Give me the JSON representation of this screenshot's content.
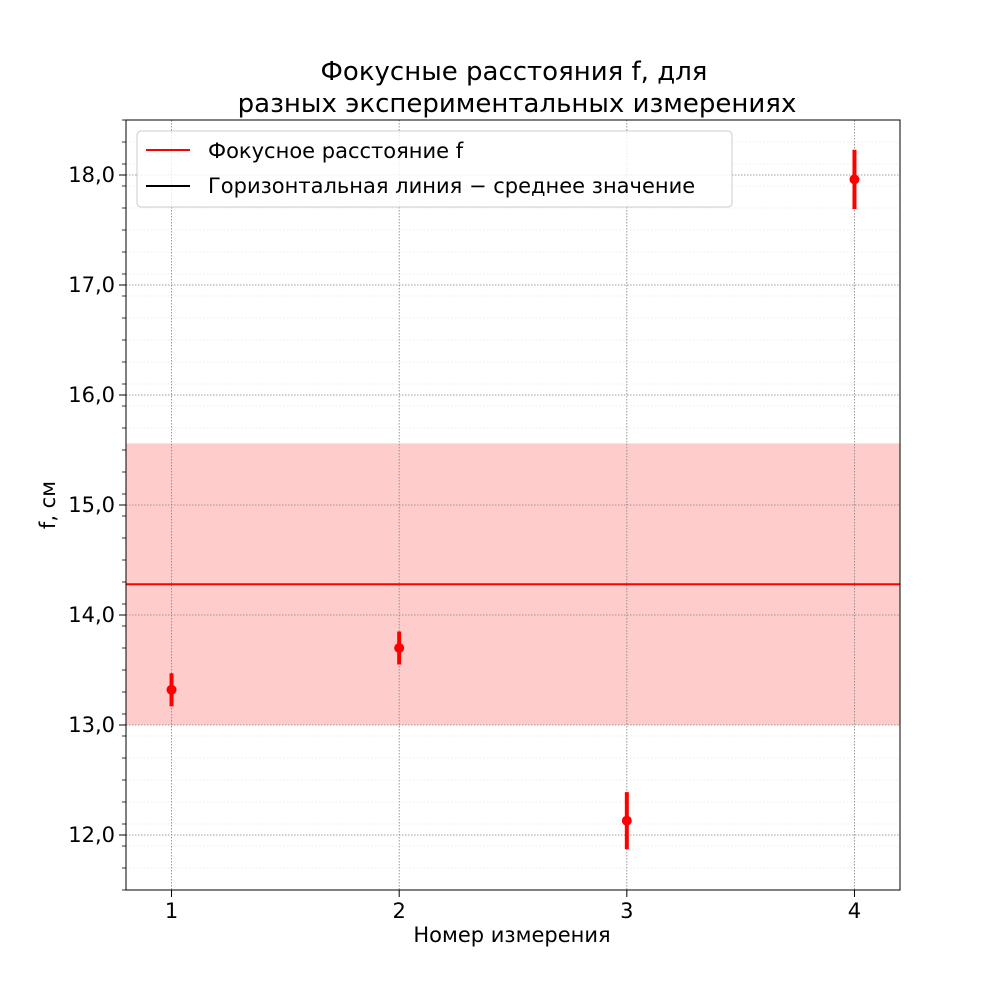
{
  "chart_data": {
    "type": "scatter",
    "title_line1": "Фокусные расстояния f, для",
    "title_line2": "разных экспериментальных измерениях",
    "xlabel": "Номер измерения",
    "ylabel": "f, см",
    "xlim": [
      0.8,
      4.2
    ],
    "ylim": [
      11.5,
      18.5
    ],
    "x_ticks": [
      1,
      2,
      3,
      4
    ],
    "x_tick_labels": [
      "1",
      "2",
      "3",
      "4"
    ],
    "y_ticks": [
      12,
      13,
      14,
      15,
      16,
      17,
      18
    ],
    "y_tick_labels": [
      "12,0",
      "13,0",
      "14,0",
      "15,0",
      "16,0",
      "17,0",
      "18,0"
    ],
    "grid": true,
    "legend_position": "top-left",
    "series": [
      {
        "name": "Фокусное расстояние f",
        "color": "#ff0000",
        "x": [
          1,
          2,
          3,
          4
        ],
        "y": [
          13.32,
          13.7,
          12.13,
          17.96
        ],
        "yerr": [
          0.15,
          0.15,
          0.26,
          0.27
        ]
      }
    ],
    "mean_line": {
      "name": "Горизонтальная линия − среднее значение",
      "legend_color": "#000000",
      "line_color": "#ff0000",
      "value": 14.28,
      "band": [
        13.0,
        15.56
      ],
      "band_color": "#ff9999"
    }
  }
}
